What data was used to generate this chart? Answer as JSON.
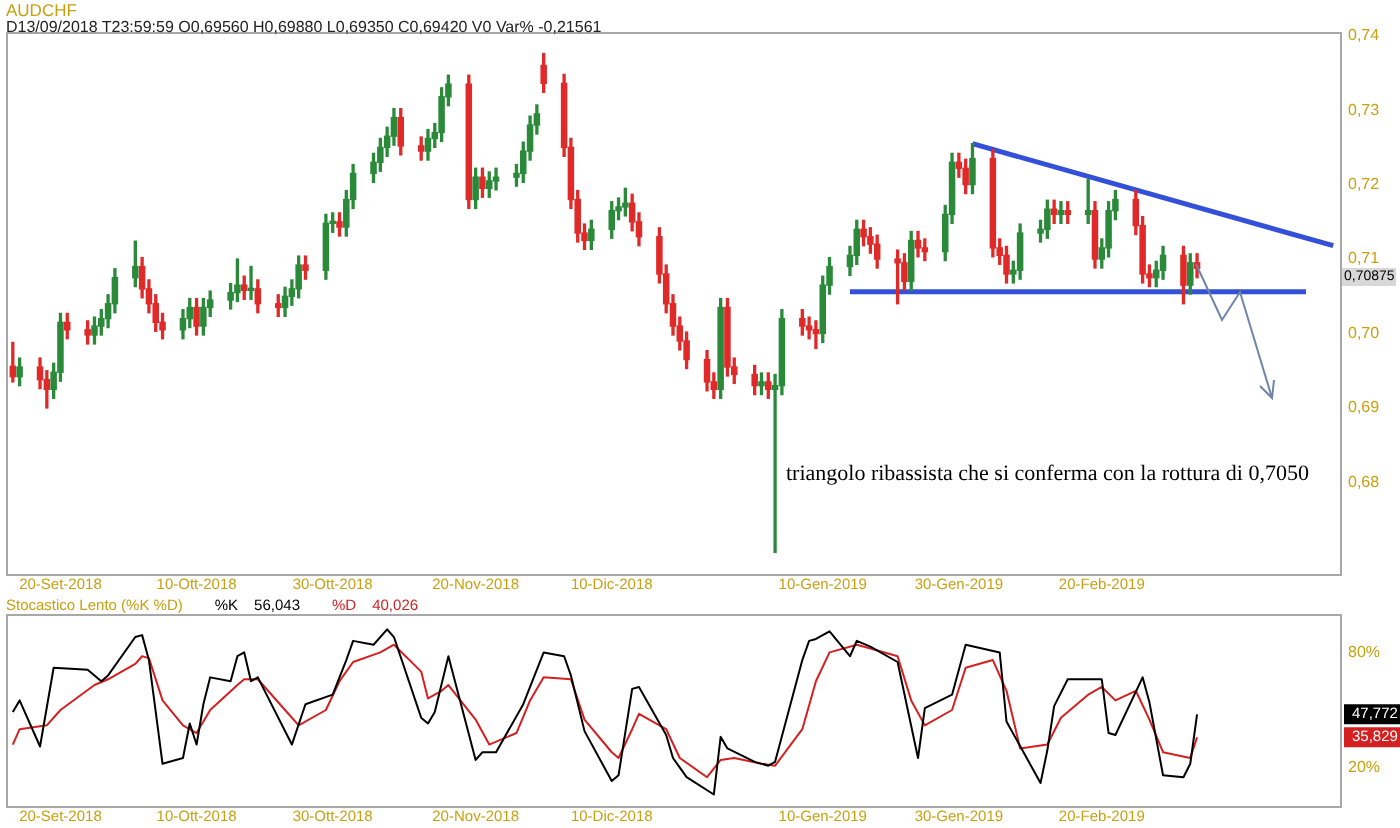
{
  "chart_data": [
    {
      "type": "candlestick",
      "title": "AUDCHF",
      "subtitle": "D13/09/2018 T23:59:59 O0,69560 H0,69880 L0,69350 C0,69420 V0 Var% -0,21561",
      "annotations": [
        "triangolo ribassista che si conferma con la rottura di 0,7050",
        "0,70875"
      ],
      "xlim": [
        "2018-09-12",
        "2019-03-27"
      ],
      "ylim": [
        0.6677,
        0.7405
      ],
      "xticks": [
        {
          "value": "2018-09-20",
          "label": "20-Set-2018"
        },
        {
          "value": "2018-10-10",
          "label": "10-Ott-2018"
        },
        {
          "value": "2018-10-30",
          "label": "30-Ott-2018"
        },
        {
          "value": "2018-11-20",
          "label": "20-Nov-2018"
        },
        {
          "value": "2018-12-10",
          "label": "10-Dic-2018"
        },
        {
          "value": "2019-01-10",
          "label": "10-Gen-2019"
        },
        {
          "value": "2019-01-30",
          "label": "30-Gen-2019"
        },
        {
          "value": "2019-02-20",
          "label": "20-Feb-2019"
        }
      ],
      "yticks": [
        {
          "value": 0.74,
          "label": "0,74"
        },
        {
          "value": 0.73,
          "label": "0,73"
        },
        {
          "value": 0.72,
          "label": "0,72"
        },
        {
          "value": 0.71,
          "label": "0,71"
        },
        {
          "value": 0.7,
          "label": "0,70"
        },
        {
          "value": 0.69,
          "label": "0,69"
        },
        {
          "value": 0.68,
          "label": "0,68"
        }
      ],
      "series": [
        {
          "type": "candlestick",
          "x": [
            "2018-09-13",
            "2018-09-14",
            "2018-09-17",
            "2018-09-18",
            "2018-09-19",
            "2018-09-20",
            "2018-09-21",
            "2018-09-24",
            "2018-09-25",
            "2018-09-26",
            "2018-09-27",
            "2018-09-28",
            "2018-10-01",
            "2018-10-02",
            "2018-10-03",
            "2018-10-04",
            "2018-10-05",
            "2018-10-08",
            "2018-10-09",
            "2018-10-10",
            "2018-10-11",
            "2018-10-12",
            "2018-10-15",
            "2018-10-16",
            "2018-10-17",
            "2018-10-18",
            "2018-10-19",
            "2018-10-22",
            "2018-10-23",
            "2018-10-24",
            "2018-10-25",
            "2018-10-26",
            "2018-10-29",
            "2018-10-30",
            "2018-10-31",
            "2018-11-01",
            "2018-11-02",
            "2018-11-05",
            "2018-11-06",
            "2018-11-07",
            "2018-11-08",
            "2018-11-09",
            "2018-11-12",
            "2018-11-13",
            "2018-11-14",
            "2018-11-15",
            "2018-11-16",
            "2018-11-19",
            "2018-11-20",
            "2018-11-21",
            "2018-11-22",
            "2018-11-23",
            "2018-11-26",
            "2018-11-27",
            "2018-11-28",
            "2018-11-29",
            "2018-11-30",
            "2018-12-03",
            "2018-12-04",
            "2018-12-05",
            "2018-12-06",
            "2018-12-07",
            "2018-12-10",
            "2018-12-11",
            "2018-12-12",
            "2018-12-13",
            "2018-12-14",
            "2018-12-17",
            "2018-12-18",
            "2018-12-19",
            "2018-12-20",
            "2018-12-21",
            "2018-12-24",
            "2018-12-25",
            "2018-12-26",
            "2018-12-27",
            "2018-12-28",
            "2018-12-31",
            "2019-01-01",
            "2019-01-02",
            "2019-01-03",
            "2019-01-04",
            "2019-01-07",
            "2019-01-08",
            "2019-01-09",
            "2019-01-10",
            "2019-01-11",
            "2019-01-14",
            "2019-01-15",
            "2019-01-16",
            "2019-01-17",
            "2019-01-18",
            "2019-01-21",
            "2019-01-22",
            "2019-01-23",
            "2019-01-24",
            "2019-01-25",
            "2019-01-28",
            "2019-01-29",
            "2019-01-30",
            "2019-01-31",
            "2019-02-01",
            "2019-02-04",
            "2019-02-05",
            "2019-02-06",
            "2019-02-07",
            "2019-02-08",
            "2019-02-11",
            "2019-02-12",
            "2019-02-13",
            "2019-02-14",
            "2019-02-15",
            "2019-02-18",
            "2019-02-19",
            "2019-02-20",
            "2019-02-21",
            "2019-02-22",
            "2019-02-25",
            "2019-02-26",
            "2019-02-27",
            "2019-02-28",
            "2019-03-01",
            "2019-03-04",
            "2019-03-05",
            "2019-03-06"
          ],
          "ohlc": [
            [
              0.6956,
              0.6988,
              0.6935,
              0.6942
            ],
            [
              0.6942,
              0.6967,
              0.693,
              0.6955
            ],
            [
              0.6955,
              0.6967,
              0.6926,
              0.6938
            ],
            [
              0.6938,
              0.695,
              0.69,
              0.6925
            ],
            [
              0.6925,
              0.696,
              0.6913,
              0.6948
            ],
            [
              0.6948,
              0.7027,
              0.6936,
              0.7015
            ],
            [
              0.7015,
              0.7027,
              0.6993,
              0.7005
            ],
            [
              0.7005,
              0.7017,
              0.6986,
              0.6998
            ],
            [
              0.6998,
              0.7022,
              0.6986,
              0.701
            ],
            [
              0.701,
              0.7032,
              0.6998,
              0.702
            ],
            [
              0.702,
              0.7052,
              0.7008,
              0.704
            ],
            [
              0.704,
              0.7087,
              0.7028,
              0.7075
            ],
            [
              0.7075,
              0.7124,
              0.7063,
              0.709
            ],
            [
              0.709,
              0.7102,
              0.7048,
              0.706
            ],
            [
              0.706,
              0.7072,
              0.7028,
              0.704
            ],
            [
              0.704,
              0.7052,
              0.7003,
              0.7015
            ],
            [
              0.7015,
              0.7027,
              0.6993,
              0.7005
            ],
            [
              0.7005,
              0.7032,
              0.6993,
              0.702
            ],
            [
              0.702,
              0.7047,
              0.7008,
              0.7035
            ],
            [
              0.7035,
              0.7047,
              0.6998,
              0.701
            ],
            [
              0.701,
              0.7047,
              0.6998,
              0.7035
            ],
            [
              0.7035,
              0.7057,
              0.7023,
              0.7045
            ],
            [
              0.7045,
              0.7067,
              0.7033,
              0.7055
            ],
            [
              0.7055,
              0.71,
              0.7043,
              0.7065
            ],
            [
              0.7065,
              0.7077,
              0.7046,
              0.7058
            ],
            [
              0.7058,
              0.709,
              0.7046,
              0.706
            ],
            [
              0.706,
              0.7072,
              0.7028,
              0.704
            ],
            [
              0.704,
              0.7052,
              0.7023,
              0.7035
            ],
            [
              0.7035,
              0.7062,
              0.7023,
              0.705
            ],
            [
              0.705,
              0.7072,
              0.7038,
              0.706
            ],
            [
              0.706,
              0.7104,
              0.7048,
              0.7092
            ],
            [
              0.7092,
              0.7104,
              0.7073,
              0.7085
            ],
            [
              0.7085,
              0.716,
              0.7073,
              0.7148
            ],
            [
              0.7148,
              0.7162,
              0.7136,
              0.715
            ],
            [
              0.715,
              0.7162,
              0.7131,
              0.7143
            ],
            [
              0.7143,
              0.7192,
              0.7131,
              0.718
            ],
            [
              0.718,
              0.7227,
              0.7168,
              0.7215
            ],
            [
              0.7215,
              0.7242,
              0.7203,
              0.723
            ],
            [
              0.723,
              0.7262,
              0.7218,
              0.725
            ],
            [
              0.725,
              0.7277,
              0.7238,
              0.7265
            ],
            [
              0.7265,
              0.7302,
              0.7253,
              0.729
            ],
            [
              0.729,
              0.7302,
              0.724,
              0.7252
            ],
            [
              0.7252,
              0.7264,
              0.7233,
              0.7245
            ],
            [
              0.7245,
              0.7274,
              0.7233,
              0.7262
            ],
            [
              0.7262,
              0.7282,
              0.725,
              0.727
            ],
            [
              0.727,
              0.733,
              0.7258,
              0.7318
            ],
            [
              0.7318,
              0.7347,
              0.7306,
              0.7335
            ],
            [
              0.7335,
              0.7347,
              0.7168,
              0.718
            ],
            [
              0.718,
              0.7222,
              0.7168,
              0.721
            ],
            [
              0.721,
              0.7222,
              0.7183,
              0.7195
            ],
            [
              0.7195,
              0.7217,
              0.7183,
              0.7205
            ],
            [
              0.7205,
              0.7222,
              0.7193,
              0.721
            ],
            [
              0.721,
              0.7227,
              0.7198,
              0.7215
            ],
            [
              0.7215,
              0.7257,
              0.7203,
              0.7245
            ],
            [
              0.7245,
              0.7292,
              0.7233,
              0.728
            ],
            [
              0.728,
              0.7307,
              0.7268,
              0.7295
            ],
            [
              0.736,
              0.7376,
              0.7324,
              0.7336
            ],
            [
              0.7336,
              0.7348,
              0.7238,
              0.725
            ],
            [
              0.725,
              0.7262,
              0.7168,
              0.718
            ],
            [
              0.718,
              0.7192,
              0.7123,
              0.7135
            ],
            [
              0.7135,
              0.7147,
              0.7113,
              0.7125
            ],
            [
              0.7125,
              0.7152,
              0.7113,
              0.714
            ],
            [
              0.714,
              0.7177,
              0.7128,
              0.7165
            ],
            [
              0.7165,
              0.7182,
              0.7153,
              0.717
            ],
            [
              0.717,
              0.7195,
              0.7158,
              0.7175
            ],
            [
              0.7175,
              0.7187,
              0.7138,
              0.715
            ],
            [
              0.715,
              0.7162,
              0.7118,
              0.713
            ],
            [
              0.713,
              0.7142,
              0.7068,
              0.708
            ],
            [
              0.708,
              0.7092,
              0.7028,
              0.704
            ],
            [
              0.704,
              0.7052,
              0.6998,
              0.701
            ],
            [
              0.701,
              0.7022,
              0.6978,
              0.699
            ],
            [
              0.699,
              0.7002,
              0.6953,
              0.6965
            ],
            [
              0.6965,
              0.6977,
              0.6923,
              0.6935
            ],
            [
              0.6935,
              0.6947,
              0.6913,
              0.6925
            ],
            [
              0.6925,
              0.7047,
              0.6913,
              0.7035
            ],
            [
              0.7035,
              0.7047,
              0.6943,
              0.6955
            ],
            [
              0.6955,
              0.6967,
              0.6933,
              0.6945
            ],
            [
              0.6945,
              0.6957,
              0.6918,
              0.693
            ],
            [
              0.693,
              0.6947,
              0.6918,
              0.6935
            ],
            [
              0.6935,
              0.6947,
              0.6913,
              0.6925
            ],
            [
              0.6925,
              0.6945,
              0.6706,
              0.693
            ],
            [
              0.693,
              0.7032,
              0.6918,
              0.702
            ],
            [
              0.702,
              0.7032,
              0.6998,
              0.701
            ],
            [
              0.701,
              0.7022,
              0.6993,
              0.7005
            ],
            [
              0.7005,
              0.7017,
              0.698,
              0.7
            ],
            [
              0.7,
              0.7077,
              0.6988,
              0.7065
            ],
            [
              0.7065,
              0.7102,
              0.7053,
              0.709
            ],
            [
              0.709,
              0.7117,
              0.7078,
              0.7105
            ],
            [
              0.7105,
              0.7152,
              0.7093,
              0.714
            ],
            [
              0.714,
              0.7152,
              0.7118,
              0.713
            ],
            [
              0.713,
              0.7142,
              0.7108,
              0.712
            ],
            [
              0.712,
              0.7132,
              0.7088,
              0.71
            ],
            [
              0.71,
              0.7112,
              0.704,
              0.7095
            ],
            [
              0.7095,
              0.7107,
              0.7058,
              0.707
            ],
            [
              0.707,
              0.7137,
              0.7058,
              0.7125
            ],
            [
              0.7125,
              0.7137,
              0.7103,
              0.7115
            ],
            [
              0.7115,
              0.7127,
              0.7098,
              0.711
            ],
            [
              0.711,
              0.7172,
              0.7098,
              0.716
            ],
            [
              0.716,
              0.7242,
              0.7148,
              0.723
            ],
            [
              0.723,
              0.7242,
              0.721,
              0.7222
            ],
            [
              0.7222,
              0.7234,
              0.7188,
              0.72
            ],
            [
              0.72,
              0.7255,
              0.7188,
              0.7235
            ],
            [
              0.7235,
              0.7247,
              0.7103,
              0.7115
            ],
            [
              0.7115,
              0.7127,
              0.7093,
              0.7105
            ],
            [
              0.7105,
              0.7117,
              0.7068,
              0.708
            ],
            [
              0.708,
              0.7097,
              0.7068,
              0.7085
            ],
            [
              0.7085,
              0.7147,
              0.7073,
              0.7135
            ],
            [
              0.7135,
              0.7152,
              0.7123,
              0.714
            ],
            [
              0.714,
              0.7179,
              0.7128,
              0.7167
            ],
            [
              0.7167,
              0.7179,
              0.7148,
              0.716
            ],
            [
              0.716,
              0.7177,
              0.7148,
              0.7165
            ],
            [
              0.7165,
              0.7177,
              0.7148,
              0.716
            ],
            [
              0.716,
              0.7207,
              0.7148,
              0.7165
            ],
            [
              0.7165,
              0.7177,
              0.7088,
              0.71
            ],
            [
              0.71,
              0.7127,
              0.7088,
              0.7115
            ],
            [
              0.7115,
              0.7177,
              0.7103,
              0.7165
            ],
            [
              0.7165,
              0.7192,
              0.7153,
              0.718
            ],
            [
              0.718,
              0.7192,
              0.7133,
              0.7145
            ],
            [
              0.7145,
              0.7157,
              0.7068,
              0.708
            ],
            [
              0.708,
              0.7092,
              0.7063,
              0.7075
            ],
            [
              0.7075,
              0.7097,
              0.7063,
              0.7085
            ],
            [
              0.7085,
              0.7117,
              0.7073,
              0.7105
            ],
            [
              0.7105,
              0.7117,
              0.704,
              0.7065
            ],
            [
              0.7065,
              0.7107,
              0.7053,
              0.7095
            ],
            [
              0.7095,
              0.7107,
              0.7075,
              0.70875
            ]
          ]
        },
        {
          "type": "line",
          "x": [
            "2019-02-01",
            "2019-03-26"
          ],
          "values": [
            0.7255,
            0.7118
          ],
          "color": "#3350d8"
        },
        {
          "type": "line",
          "x": [
            "2019-01-14",
            "2019-03-22"
          ],
          "values": [
            0.7056,
            0.7056
          ],
          "color": "#3350d8"
        }
      ]
    },
    {
      "type": "line",
      "title": "Stocastico Lento (%K %D)",
      "legend": "top left",
      "annotations": [
        "56,043",
        "40,026",
        {
          "text": "47,772",
          "y": 47.772
        },
        {
          "text": "35,829",
          "y": 35.829
        }
      ],
      "xlim": [
        "2018-09-12",
        "2019-03-27"
      ],
      "ylim": [
        0,
        100
      ],
      "xticks": [
        {
          "value": "2018-09-20",
          "label": "20-Set-2018"
        },
        {
          "value": "2018-10-10",
          "label": "10-Ott-2018"
        },
        {
          "value": "2018-10-30",
          "label": "30-Ott-2018"
        },
        {
          "value": "2018-11-20",
          "label": "20-Nov-2018"
        },
        {
          "value": "2018-12-10",
          "label": "10-Dic-2018"
        },
        {
          "value": "2019-01-10",
          "label": "10-Gen-2019"
        },
        {
          "value": "2019-01-30",
          "label": "30-Gen-2019"
        },
        {
          "value": "2019-02-20",
          "label": "20-Feb-2019"
        }
      ],
      "yticks": [
        {
          "value": 80,
          "label": "80%"
        },
        {
          "value": 20,
          "label": "20%"
        }
      ],
      "series": [
        {
          "name": "%K",
          "color": "#000000",
          "x": [
            "2018-09-13",
            "2018-09-14",
            "2018-09-17",
            "2018-09-19",
            "2018-09-24",
            "2018-09-26",
            "2018-09-27",
            "2018-10-01",
            "2018-10-02",
            "2018-10-03",
            "2018-10-05",
            "2018-10-08",
            "2018-10-09",
            "2018-10-10",
            "2018-10-11",
            "2018-10-12",
            "2018-10-15",
            "2018-10-16",
            "2018-10-17",
            "2018-10-18",
            "2018-10-19",
            "2018-10-24",
            "2018-10-26",
            "2018-10-30",
            "2018-11-01",
            "2018-11-02",
            "2018-11-05",
            "2018-11-07",
            "2018-11-08",
            "2018-11-12",
            "2018-11-13",
            "2018-11-14",
            "2018-11-16",
            "2018-11-20",
            "2018-11-21",
            "2018-11-23",
            "2018-11-27",
            "2018-11-30",
            "2018-12-03",
            "2018-12-04",
            "2018-12-06",
            "2018-12-10",
            "2018-12-11",
            "2018-12-13",
            "2018-12-14",
            "2018-12-18",
            "2018-12-19",
            "2018-12-21",
            "2018-12-25",
            "2018-12-26",
            "2018-12-27",
            "2018-12-31",
            "2019-01-02",
            "2019-01-03",
            "2019-01-07",
            "2019-01-08",
            "2019-01-09",
            "2019-01-11",
            "2019-01-14",
            "2019-01-15",
            "2019-01-17",
            "2019-01-21",
            "2019-01-24",
            "2019-01-25",
            "2019-01-29",
            "2019-01-31",
            "2019-02-05",
            "2019-02-06",
            "2019-02-11",
            "2019-02-12",
            "2019-02-13",
            "2019-02-15",
            "2019-02-20",
            "2019-02-21",
            "2019-02-22",
            "2019-02-26",
            "2019-02-27",
            "2019-03-01",
            "2019-03-04",
            "2019-03-05",
            "2019-03-06"
          ],
          "values": [
            49,
            55,
            31,
            72,
            71,
            65,
            68,
            88,
            89,
            76,
            22,
            25,
            43,
            32,
            53,
            67,
            65,
            78,
            80,
            65,
            67,
            32,
            53,
            58,
            76,
            86,
            84,
            92,
            88,
            46,
            43,
            49,
            78,
            24,
            28,
            28,
            53,
            80,
            78,
            68,
            39,
            13,
            16,
            61,
            62,
            37,
            25,
            15,
            6,
            36,
            30,
            23,
            21,
            23,
            76,
            86,
            87,
            91,
            78,
            86,
            83,
            75,
            25,
            51,
            58,
            84,
            80,
            44,
            12,
            29,
            52,
            66,
            66,
            38,
            37,
            67,
            54,
            16,
            15,
            22,
            47.772
          ]
        },
        {
          "name": "%D",
          "color": "#d42020",
          "x": [
            "2018-09-13",
            "2018-09-14",
            "2018-09-18",
            "2018-09-20",
            "2018-09-25",
            "2018-09-27",
            "2018-10-01",
            "2018-10-02",
            "2018-10-03",
            "2018-10-05",
            "2018-10-08",
            "2018-10-10",
            "2018-10-12",
            "2018-10-16",
            "2018-10-17",
            "2018-10-19",
            "2018-10-23",
            "2018-10-25",
            "2018-10-29",
            "2018-10-31",
            "2018-11-02",
            "2018-11-06",
            "2018-11-08",
            "2018-11-12",
            "2018-11-13",
            "2018-11-15",
            "2018-11-16",
            "2018-11-20",
            "2018-11-22",
            "2018-11-26",
            "2018-11-28",
            "2018-11-30",
            "2018-12-04",
            "2018-12-06",
            "2018-12-10",
            "2018-12-11",
            "2018-12-13",
            "2018-12-14",
            "2018-12-18",
            "2018-12-20",
            "2018-12-24",
            "2018-12-26",
            "2018-12-28",
            "2019-01-01",
            "2019-01-03",
            "2019-01-07",
            "2019-01-09",
            "2019-01-11",
            "2019-01-15",
            "2019-01-17",
            "2019-01-21",
            "2019-01-23",
            "2019-01-25",
            "2019-01-29",
            "2019-01-31",
            "2019-02-04",
            "2019-02-06",
            "2019-02-08",
            "2019-02-12",
            "2019-02-14",
            "2019-02-18",
            "2019-02-20",
            "2019-02-22",
            "2019-02-25",
            "2019-02-27",
            "2019-03-01",
            "2019-03-05",
            "2019-03-06"
          ],
          "values": [
            32,
            40,
            42,
            50,
            63,
            66,
            74,
            78,
            77,
            55,
            42,
            38,
            50,
            63,
            66,
            66,
            50,
            42,
            50,
            65,
            75,
            80,
            84,
            70,
            56,
            60,
            63,
            45,
            32,
            38,
            55,
            67,
            66,
            45,
            28,
            25,
            40,
            48,
            40,
            25,
            15,
            24,
            25,
            22,
            21,
            40,
            65,
            80,
            84,
            82,
            78,
            55,
            42,
            50,
            72,
            76,
            60,
            30,
            32,
            46,
            58,
            62,
            55,
            60,
            45,
            28,
            25,
            35.829
          ]
        }
      ]
    }
  ]
}
